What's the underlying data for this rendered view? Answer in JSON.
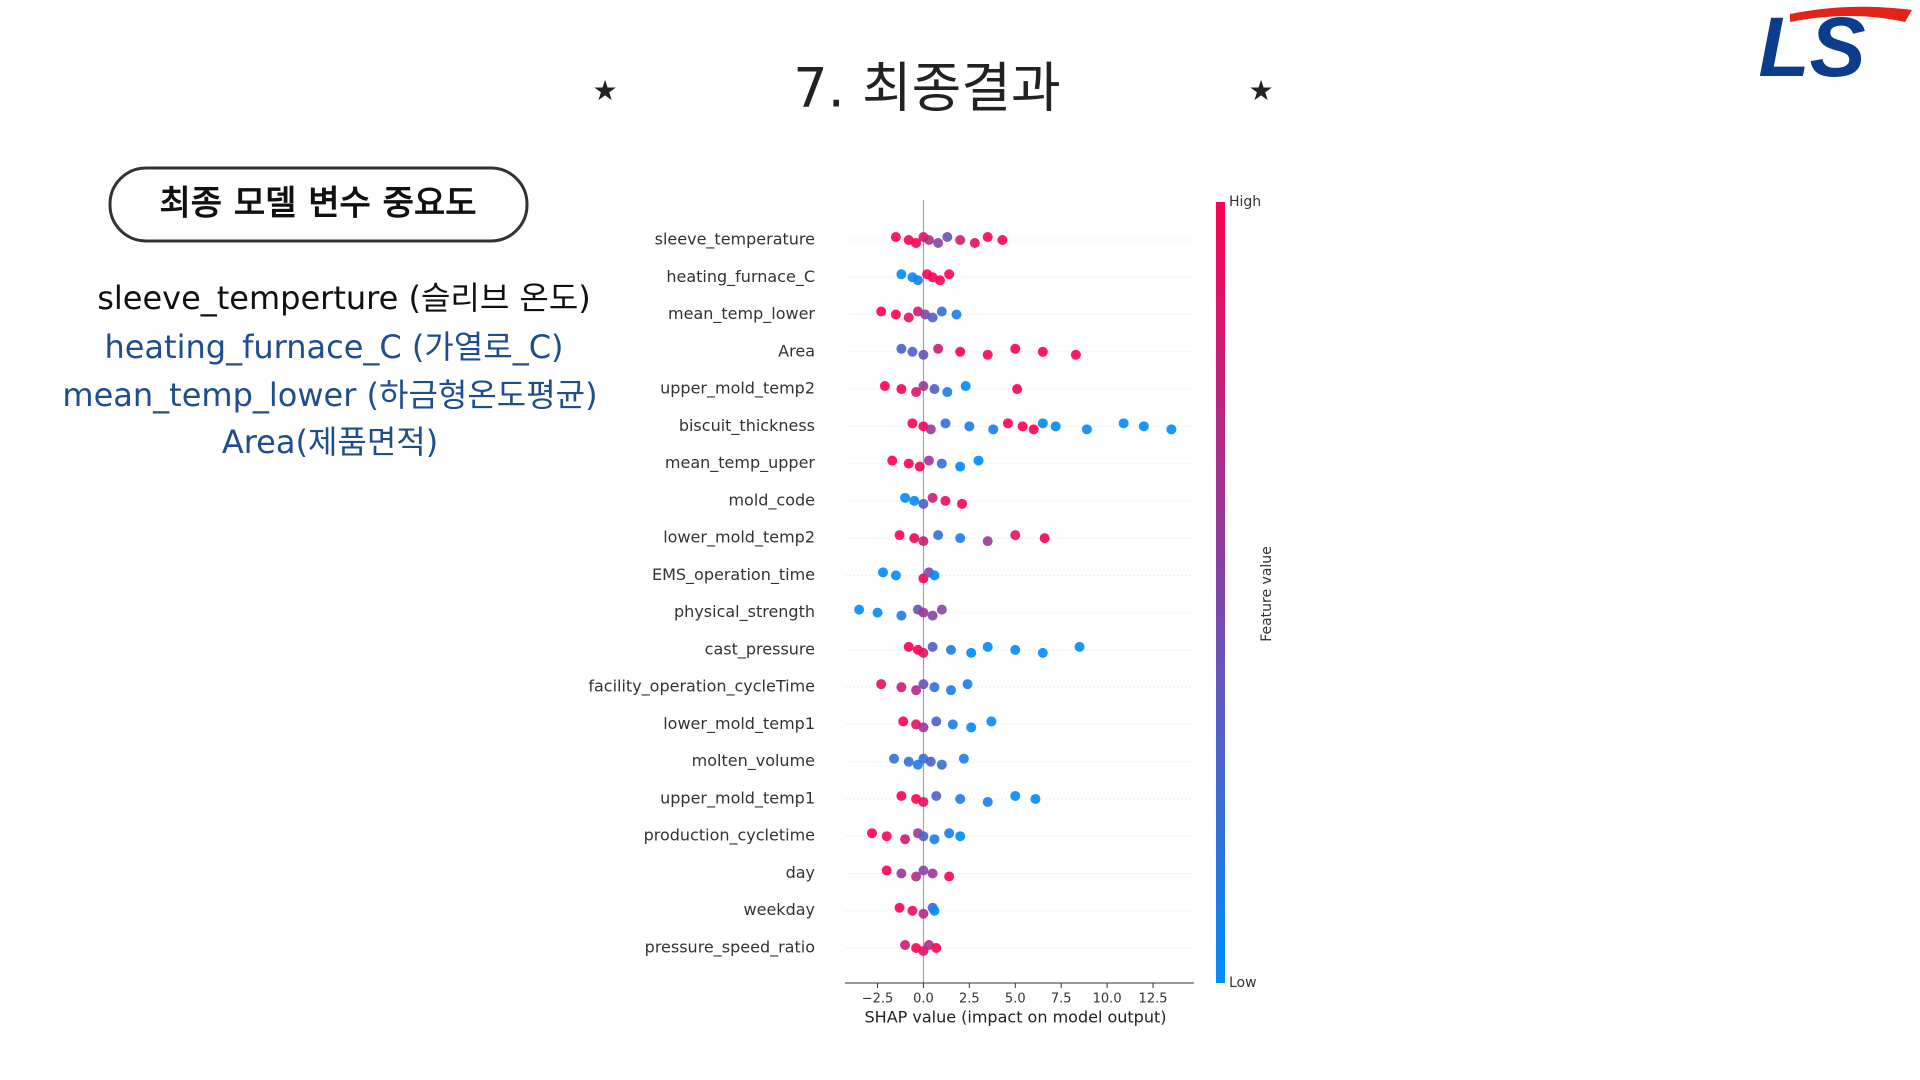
{
  "slide": {
    "title": "7. 최종결과",
    "star_left": "★",
    "star_right": "★",
    "logo": "LS",
    "badge": "최종 모델 변수 중요도",
    "lines": [
      "sleeve_temperture (슬리브 온도)",
      "heating_furnace_C (가열로_C)",
      "mean_temp_lower (하금형온도평균)",
      "Area(제품면적)"
    ]
  },
  "chart_data": {
    "type": "beeswarm",
    "x_label": "SHAP value (impact on model output)",
    "colorbar_label": "Feature value",
    "colorbar_high": "High",
    "colorbar_low": "Low",
    "colormap": [
      "#008bfb",
      "#ff0052"
    ],
    "xlim": [
      -4.27,
      14.73
    ],
    "xticks": [
      {
        "value": -2.5,
        "label": "−2.5"
      },
      {
        "value": 0,
        "label": "0.0"
      },
      2.5,
      {
        "value": 5,
        "label": "5.0"
      },
      7.5,
      {
        "value": 10,
        "label": "10.0"
      },
      12.5
    ],
    "series": [
      {
        "name": "sleeve_temperature",
        "points": [
          [
            -1.5,
            1
          ],
          [
            -0.8,
            1
          ],
          [
            -0.4,
            1
          ],
          [
            0,
            0.9
          ],
          [
            0.3,
            0.7
          ],
          [
            0.8,
            0.5
          ],
          [
            1.3,
            0.4
          ],
          [
            2,
            0.8
          ],
          [
            2.8,
            0.9
          ],
          [
            3.5,
            1
          ],
          [
            4.3,
            1
          ]
        ]
      },
      {
        "name": "heating_furnace_C",
        "points": [
          [
            -1.2,
            0
          ],
          [
            -0.6,
            0
          ],
          [
            -0.3,
            0.1
          ],
          [
            0.2,
            1
          ],
          [
            0.5,
            1
          ],
          [
            0.9,
            1
          ],
          [
            1.4,
            1
          ]
        ]
      },
      {
        "name": "mean_temp_lower",
        "points": [
          [
            -2.3,
            1
          ],
          [
            -1.5,
            1
          ],
          [
            -0.8,
            0.9
          ],
          [
            -0.3,
            0.8
          ],
          [
            0.1,
            0.5
          ],
          [
            0.5,
            0.3
          ],
          [
            1,
            0.2
          ],
          [
            1.8,
            0.1
          ]
        ]
      },
      {
        "name": "Area",
        "points": [
          [
            -1.2,
            0.3
          ],
          [
            -0.6,
            0.3
          ],
          [
            0,
            0.4
          ],
          [
            0.8,
            0.8
          ],
          [
            2,
            1
          ],
          [
            3.5,
            1
          ],
          [
            5,
            1
          ],
          [
            6.5,
            1
          ],
          [
            8.3,
            1
          ]
        ]
      },
      {
        "name": "upper_mold_temp2",
        "points": [
          [
            -2.1,
            1
          ],
          [
            -1.2,
            1
          ],
          [
            -0.4,
            0.9
          ],
          [
            0,
            0.6
          ],
          [
            0.6,
            0.3
          ],
          [
            1.3,
            0.1
          ],
          [
            2.3,
            0
          ],
          [
            5.1,
            1
          ]
        ]
      },
      {
        "name": "biscuit_thickness",
        "points": [
          [
            -0.6,
            1
          ],
          [
            0,
            1
          ],
          [
            0.4,
            0.6
          ],
          [
            1.2,
            0.2
          ],
          [
            2.5,
            0.1
          ],
          [
            3.8,
            0.1
          ],
          [
            4.6,
            1
          ],
          [
            5.4,
            1
          ],
          [
            6,
            1
          ],
          [
            6.5,
            0
          ],
          [
            7.2,
            0
          ],
          [
            8.9,
            0
          ],
          [
            10.9,
            0
          ],
          [
            12,
            0
          ],
          [
            13.5,
            0
          ]
        ]
      },
      {
        "name": "mean_temp_upper",
        "points": [
          [
            -1.7,
            1
          ],
          [
            -0.8,
            1
          ],
          [
            -0.2,
            1
          ],
          [
            0.3,
            0.6
          ],
          [
            1,
            0.2
          ],
          [
            2,
            0
          ],
          [
            3,
            0
          ]
        ]
      },
      {
        "name": "mold_code",
        "points": [
          [
            -1,
            0
          ],
          [
            -0.5,
            0
          ],
          [
            0,
            0.3
          ],
          [
            0.5,
            0.8
          ],
          [
            1.2,
            0.9
          ],
          [
            2.1,
            1
          ]
        ]
      },
      {
        "name": "lower_mold_temp2",
        "points": [
          [
            -1.3,
            1
          ],
          [
            -0.5,
            1
          ],
          [
            0,
            0.8
          ],
          [
            0.8,
            0.2
          ],
          [
            2,
            0.1
          ],
          [
            3.5,
            0.6
          ],
          [
            5,
            0.9
          ],
          [
            6.6,
            1
          ]
        ]
      },
      {
        "name": "EMS_operation_time",
        "points": [
          [
            -2.2,
            0
          ],
          [
            -1.5,
            0
          ],
          [
            0,
            1
          ],
          [
            0.3,
            0.5
          ],
          [
            0.6,
            0
          ]
        ]
      },
      {
        "name": "physical_strength",
        "points": [
          [
            -3.5,
            0
          ],
          [
            -2.5,
            0
          ],
          [
            -1.2,
            0.1
          ],
          [
            -0.3,
            0.4
          ],
          [
            0,
            0.6
          ],
          [
            0.5,
            0.5
          ],
          [
            1,
            0.5
          ]
        ]
      },
      {
        "name": "cast_pressure",
        "points": [
          [
            -0.8,
            1
          ],
          [
            -0.3,
            1
          ],
          [
            0,
            0.9
          ],
          [
            0.5,
            0.3
          ],
          [
            1.5,
            0.1
          ],
          [
            2.6,
            0
          ],
          [
            3.5,
            0
          ],
          [
            5,
            0
          ],
          [
            6.5,
            0
          ],
          [
            8.5,
            0
          ]
        ]
      },
      {
        "name": "facility_operation_cycleTime",
        "points": [
          [
            -2.3,
            0.9
          ],
          [
            -1.2,
            0.8
          ],
          [
            -0.4,
            0.7
          ],
          [
            0,
            0.4
          ],
          [
            0.6,
            0.2
          ],
          [
            1.5,
            0.1
          ],
          [
            2.4,
            0.1
          ]
        ]
      },
      {
        "name": "lower_mold_temp1",
        "points": [
          [
            -1.1,
            1
          ],
          [
            -0.4,
            0.9
          ],
          [
            0,
            0.6
          ],
          [
            0.7,
            0.3
          ],
          [
            1.6,
            0.1
          ],
          [
            2.6,
            0
          ],
          [
            3.7,
            0
          ]
        ]
      },
      {
        "name": "molten_volume",
        "points": [
          [
            -1.6,
            0.2
          ],
          [
            -0.8,
            0.2
          ],
          [
            -0.3,
            0.1
          ],
          [
            0,
            0.2
          ],
          [
            0.4,
            0.3
          ],
          [
            1,
            0.2
          ],
          [
            2.2,
            0.1
          ]
        ]
      },
      {
        "name": "upper_mold_temp1",
        "points": [
          [
            -1.2,
            1
          ],
          [
            -0.4,
            1
          ],
          [
            0,
            0.9
          ],
          [
            0.7,
            0.3
          ],
          [
            2,
            0.1
          ],
          [
            3.5,
            0.1
          ],
          [
            5,
            0
          ],
          [
            6.1,
            0
          ]
        ]
      },
      {
        "name": "production_cycletime",
        "points": [
          [
            -2.8,
            1
          ],
          [
            -2,
            1
          ],
          [
            -1,
            0.8
          ],
          [
            -0.3,
            0.6
          ],
          [
            0,
            0.3
          ],
          [
            0.6,
            0.1
          ],
          [
            1.4,
            0.1
          ],
          [
            2,
            0
          ]
        ]
      },
      {
        "name": "day",
        "points": [
          [
            -2,
            1
          ],
          [
            -1.2,
            0.6
          ],
          [
            -0.4,
            0.7
          ],
          [
            0,
            0.5
          ],
          [
            0.5,
            0.6
          ],
          [
            1.4,
            1
          ]
        ]
      },
      {
        "name": "weekday",
        "points": [
          [
            -1.3,
            1
          ],
          [
            -0.6,
            0.9
          ],
          [
            0,
            0.7
          ],
          [
            0.5,
            0.3
          ],
          [
            0.6,
            0
          ]
        ]
      },
      {
        "name": "pressure_speed_ratio",
        "points": [
          [
            -1,
            0.8
          ],
          [
            -0.4,
            1
          ],
          [
            0,
            0.9
          ],
          [
            0.3,
            0.7
          ],
          [
            0.7,
            1
          ]
        ]
      }
    ]
  }
}
